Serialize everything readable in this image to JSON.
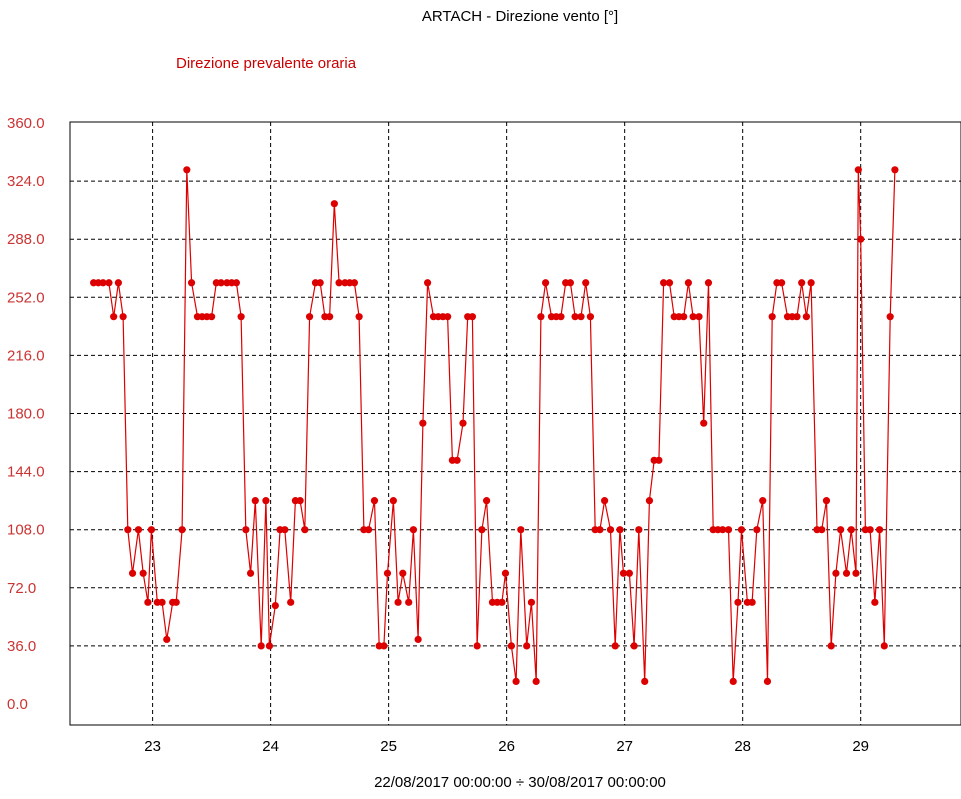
{
  "chart_data": {
    "type": "line",
    "title": "ARTACH - Direzione vento [°]",
    "series_label": "Direzione prevalente oraria",
    "xlabel": "22/08/2017 00:00:00 ÷ 30/08/2017 00:00:00",
    "ylabel": "",
    "xlim": [
      22.3,
      29.85
    ],
    "ylim": [
      0,
      360
    ],
    "yticks": [
      "360.0",
      "324.0",
      "288.0",
      "252.0",
      "216.0",
      "180.0",
      "144.0",
      "108.0",
      "72.0",
      "36.0",
      "0.0"
    ],
    "xticks": [
      "23",
      "24",
      "25",
      "26",
      "27",
      "28",
      "29"
    ],
    "grid": true,
    "colors": {
      "series": "#dd0000",
      "axis_labels": "#cc3333",
      "grid": "#000000"
    },
    "series": [
      {
        "name": "Direzione prevalente oraria",
        "points": [
          [
            22.5,
            261
          ],
          [
            22.54,
            261
          ],
          [
            22.58,
            261
          ],
          [
            22.63,
            261
          ],
          [
            22.67,
            240
          ],
          [
            22.71,
            261
          ],
          [
            22.75,
            240
          ],
          [
            22.79,
            108
          ],
          [
            22.83,
            81
          ],
          [
            22.88,
            108
          ],
          [
            22.92,
            81
          ],
          [
            22.96,
            63
          ],
          [
            22.99,
            108
          ],
          [
            23.04,
            63
          ],
          [
            23.08,
            63
          ],
          [
            23.12,
            40
          ],
          [
            23.17,
            63
          ],
          [
            23.2,
            63
          ],
          [
            23.25,
            108
          ],
          [
            23.29,
            331
          ],
          [
            23.33,
            261
          ],
          [
            23.38,
            240
          ],
          [
            23.42,
            240
          ],
          [
            23.46,
            240
          ],
          [
            23.5,
            240
          ],
          [
            23.54,
            261
          ],
          [
            23.58,
            261
          ],
          [
            23.63,
            261
          ],
          [
            23.67,
            261
          ],
          [
            23.71,
            261
          ],
          [
            23.75,
            240
          ],
          [
            23.79,
            108
          ],
          [
            23.83,
            81
          ],
          [
            23.87,
            126
          ],
          [
            23.92,
            36
          ],
          [
            23.96,
            126
          ],
          [
            23.99,
            36
          ],
          [
            24.04,
            61
          ],
          [
            24.08,
            108
          ],
          [
            24.12,
            108
          ],
          [
            24.17,
            63
          ],
          [
            24.21,
            126
          ],
          [
            24.25,
            126
          ],
          [
            24.29,
            108
          ],
          [
            24.33,
            240
          ],
          [
            24.38,
            261
          ],
          [
            24.42,
            261
          ],
          [
            24.46,
            240
          ],
          [
            24.5,
            240
          ],
          [
            24.54,
            310
          ],
          [
            24.58,
            261
          ],
          [
            24.63,
            261
          ],
          [
            24.67,
            261
          ],
          [
            24.71,
            261
          ],
          [
            24.75,
            240
          ],
          [
            24.79,
            108
          ],
          [
            24.83,
            108
          ],
          [
            24.88,
            126
          ],
          [
            24.92,
            36
          ],
          [
            24.96,
            36
          ],
          [
            24.99,
            81
          ],
          [
            25.04,
            126
          ],
          [
            25.08,
            63
          ],
          [
            25.12,
            81
          ],
          [
            25.17,
            63
          ],
          [
            25.21,
            108
          ],
          [
            25.25,
            40
          ],
          [
            25.29,
            174
          ],
          [
            25.33,
            261
          ],
          [
            25.38,
            240
          ],
          [
            25.42,
            240
          ],
          [
            25.46,
            240
          ],
          [
            25.5,
            240
          ],
          [
            25.54,
            151
          ],
          [
            25.58,
            151
          ],
          [
            25.63,
            174
          ],
          [
            25.67,
            240
          ],
          [
            25.71,
            240
          ],
          [
            25.75,
            36
          ],
          [
            25.79,
            108
          ],
          [
            25.83,
            126
          ],
          [
            25.88,
            63
          ],
          [
            25.92,
            63
          ],
          [
            25.96,
            63
          ],
          [
            25.99,
            81
          ],
          [
            26.04,
            36
          ],
          [
            26.08,
            14
          ],
          [
            26.12,
            108
          ],
          [
            26.17,
            36
          ],
          [
            26.21,
            63
          ],
          [
            26.25,
            14
          ],
          [
            26.29,
            240
          ],
          [
            26.33,
            261
          ],
          [
            26.38,
            240
          ],
          [
            26.42,
            240
          ],
          [
            26.46,
            240
          ],
          [
            26.5,
            261
          ],
          [
            26.54,
            261
          ],
          [
            26.58,
            240
          ],
          [
            26.63,
            240
          ],
          [
            26.67,
            261
          ],
          [
            26.71,
            240
          ],
          [
            26.75,
            108
          ],
          [
            26.79,
            108
          ],
          [
            26.83,
            126
          ],
          [
            26.88,
            108
          ],
          [
            26.92,
            36
          ],
          [
            26.96,
            108
          ],
          [
            26.99,
            81
          ],
          [
            27.04,
            81
          ],
          [
            27.08,
            36
          ],
          [
            27.12,
            108
          ],
          [
            27.17,
            14
          ],
          [
            27.21,
            126
          ],
          [
            27.25,
            151
          ],
          [
            27.29,
            151
          ],
          [
            27.33,
            261
          ],
          [
            27.38,
            261
          ],
          [
            27.42,
            240
          ],
          [
            27.46,
            240
          ],
          [
            27.5,
            240
          ],
          [
            27.54,
            261
          ],
          [
            27.58,
            240
          ],
          [
            27.63,
            240
          ],
          [
            27.67,
            174
          ],
          [
            27.71,
            261
          ],
          [
            27.75,
            108
          ],
          [
            27.79,
            108
          ],
          [
            27.83,
            108
          ],
          [
            27.88,
            108
          ],
          [
            27.92,
            14
          ],
          [
            27.96,
            63
          ],
          [
            27.99,
            108
          ],
          [
            28.04,
            63
          ],
          [
            28.08,
            63
          ],
          [
            28.12,
            108
          ],
          [
            28.17,
            126
          ],
          [
            28.21,
            14
          ],
          [
            28.25,
            240
          ],
          [
            28.29,
            261
          ],
          [
            28.33,
            261
          ],
          [
            28.38,
            240
          ],
          [
            28.42,
            240
          ],
          [
            28.46,
            240
          ],
          [
            28.5,
            261
          ],
          [
            28.54,
            240
          ],
          [
            28.58,
            261
          ],
          [
            28.63,
            108
          ],
          [
            28.67,
            108
          ],
          [
            28.71,
            126
          ],
          [
            28.75,
            36
          ],
          [
            28.79,
            81
          ],
          [
            28.83,
            108
          ],
          [
            28.88,
            81
          ],
          [
            28.92,
            108
          ],
          [
            28.96,
            81
          ],
          [
            28.98,
            331
          ],
          [
            29.0,
            288
          ],
          [
            29.04,
            108
          ],
          [
            29.08,
            108
          ],
          [
            29.12,
            63
          ],
          [
            29.16,
            108
          ],
          [
            29.2,
            36
          ],
          [
            29.25,
            240
          ],
          [
            29.29,
            331
          ]
        ]
      }
    ]
  }
}
